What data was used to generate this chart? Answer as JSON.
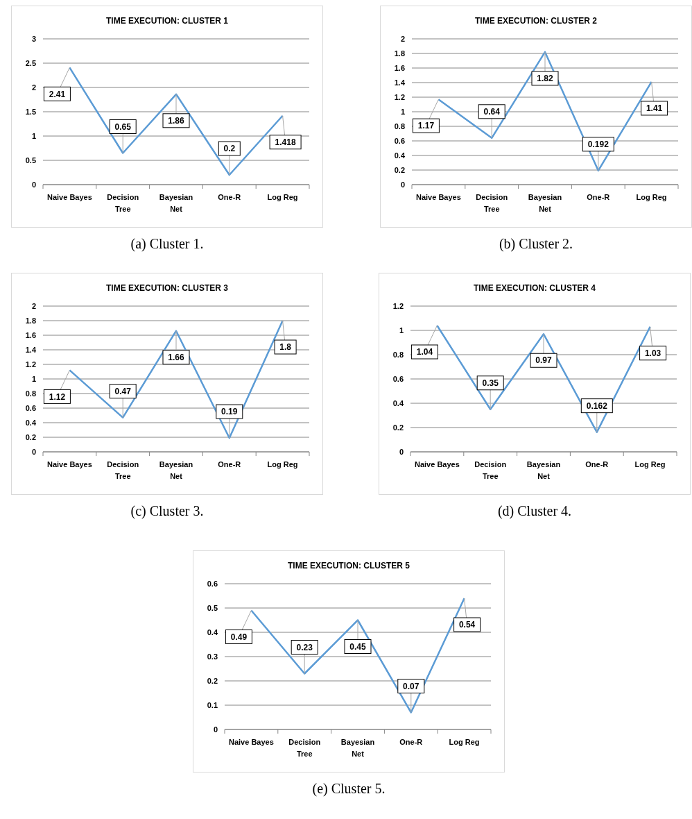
{
  "chart_data": [
    {
      "type": "line",
      "title": "TIME EXECUTION: CLUSTER 1",
      "categories": [
        "Naive Bayes",
        "Decision Tree",
        "Bayesian Net",
        "One-R",
        "Log Reg"
      ],
      "series": [
        {
          "color": "#5b9bd5",
          "values": [
            2.41,
            0.65,
            1.86,
            0.2,
            1.418
          ]
        }
      ],
      "ylim": [
        0,
        3
      ],
      "yticks": [
        0,
        0.5,
        1,
        1.5,
        2,
        2.5,
        3
      ],
      "grid": "y",
      "data_labels": true,
      "annotations": [
        "(a) Cluster 1."
      ]
    },
    {
      "type": "line",
      "title": "TIME EXECUTION: CLUSTER 2",
      "categories": [
        "Naive Bayes",
        "Decision Tree",
        "Bayesian Net",
        "One-R",
        "Log Reg"
      ],
      "series": [
        {
          "color": "#5b9bd5",
          "values": [
            1.17,
            0.64,
            1.82,
            0.192,
            1.41
          ]
        }
      ],
      "ylim": [
        0,
        2
      ],
      "yticks": [
        0,
        0.2,
        0.4,
        0.6,
        0.8,
        1,
        1.2,
        1.4,
        1.6,
        1.8,
        2
      ],
      "grid": "y",
      "data_labels": true,
      "annotations": [
        "(b) Cluster 2."
      ]
    },
    {
      "type": "line",
      "title": "TIME EXECUTION: CLUSTER 3",
      "categories": [
        "Naive Bayes",
        "Decision Tree",
        "Bayesian Net",
        "One-R",
        "Log Reg"
      ],
      "series": [
        {
          "color": "#5b9bd5",
          "values": [
            1.12,
            0.47,
            1.66,
            0.19,
            1.8
          ]
        }
      ],
      "ylim": [
        0,
        2
      ],
      "yticks": [
        0,
        0.2,
        0.4,
        0.6,
        0.8,
        1,
        1.2,
        1.4,
        1.6,
        1.8,
        2
      ],
      "grid": "y",
      "data_labels": true,
      "annotations": [
        "(c) Cluster 3."
      ]
    },
    {
      "type": "line",
      "title": "TIME EXECUTION: CLUSTER 4",
      "categories": [
        "Naive Bayes",
        "Decision Tree",
        "Bayesian Net",
        "One-R",
        "Log Reg"
      ],
      "series": [
        {
          "color": "#5b9bd5",
          "values": [
            1.04,
            0.35,
            0.97,
            0.162,
            1.03
          ]
        }
      ],
      "ylim": [
        0,
        1.2
      ],
      "yticks": [
        0,
        0.2,
        0.4,
        0.6,
        0.8,
        1,
        1.2
      ],
      "grid": "y",
      "data_labels": true,
      "annotations": [
        "(d) Cluster 4."
      ]
    },
    {
      "type": "line",
      "title": "TIME EXECUTION: CLUSTER 5",
      "categories": [
        "Naive Bayes",
        "Decision Tree",
        "Bayesian Net",
        "One-R",
        "Log Reg"
      ],
      "series": [
        {
          "color": "#5b9bd5",
          "values": [
            0.49,
            0.23,
            0.45,
            0.07,
            0.54
          ]
        }
      ],
      "ylim": [
        0,
        0.6
      ],
      "yticks": [
        0,
        0.1,
        0.2,
        0.3,
        0.4,
        0.5,
        0.6
      ],
      "grid": "y",
      "data_labels": true,
      "annotations": [
        "(e) Cluster 5."
      ]
    }
  ]
}
